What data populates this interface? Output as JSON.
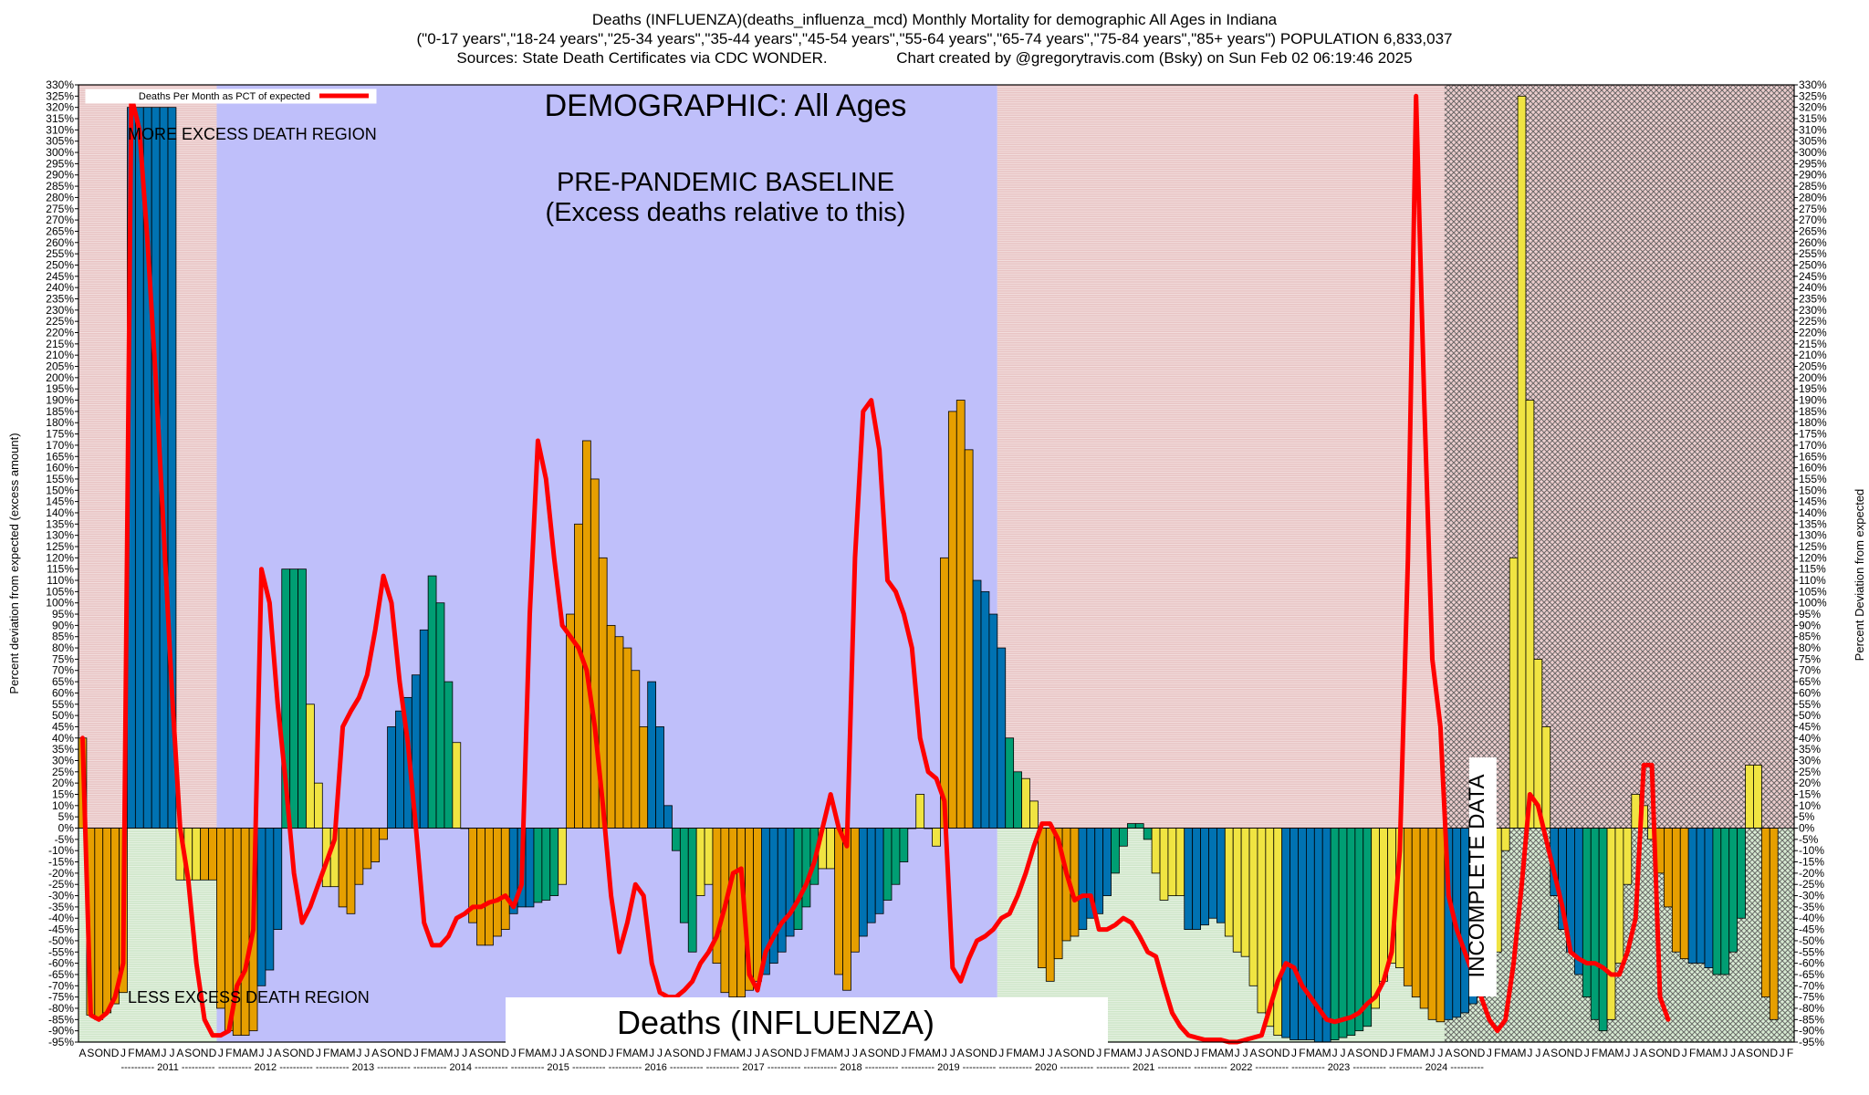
{
  "header": {
    "line1": "Deaths (INFLUENZA)(deaths_influenza_mcd) Monthly Mortality for demographic All Ages in Indiana",
    "line2": "(\"0-17 years\",\"18-24 years\",\"25-34 years\",\"35-44 years\",\"45-54 years\",\"55-64 years\",\"65-74 years\",\"75-84 years\",\"85+ years\") POPULATION 6,833,037",
    "line3": "Sources: State Death Certificates via CDC WONDER.                Chart created by @gregorytravis.com (Bsky) on Sun Feb 02 06:19:46 2025"
  },
  "labels": {
    "demographic": "DEMOGRAPHIC: All Ages",
    "baseline_line1": "PRE-PANDEMIC BASELINE",
    "baseline_line2": "(Excess deaths relative to this)",
    "more_region": "MORE EXCESS DEATH REGION",
    "less_region": "LESS EXCESS DEATH REGION",
    "metric": "Deaths (INFLUENZA)",
    "incomplete": "INCOMPLETE DATA",
    "legend": "Deaths Per Month as PCT of expected",
    "ylabel_left": "Percent deviation from expected (excess amount)",
    "ylabel_right": "Percent Deviation from expected"
  },
  "colors": {
    "excess_region": "#e8c4c4",
    "deficit_region": "#cfe6c9",
    "baseline_region": "#bfbffa",
    "bar_orange": "#e69f00",
    "bar_yellow": "#f0e442",
    "bar_blue": "#0072b2",
    "bar_green": "#009e73",
    "line": "#ff0000"
  },
  "chart_data": {
    "type": "bar",
    "ylim": [
      -95,
      330
    ],
    "ytick_step": 5,
    "x_start": "2010-08",
    "years": [
      "2011",
      "2012",
      "2013",
      "2014",
      "2015",
      "2016",
      "2017",
      "2018",
      "2019",
      "2020",
      "2021",
      "2022",
      "2023",
      "2024"
    ],
    "month_initials": [
      "J",
      "F",
      "M",
      "A",
      "M",
      "J",
      "J",
      "A",
      "S",
      "O",
      "N",
      "D"
    ],
    "baseline_period": [
      "2012-01",
      "2019-12"
    ],
    "incomplete_period": [
      "2024-08",
      "2024-12"
    ],
    "bars": [
      {
        "values": [
          40,
          -83,
          -85,
          -82,
          -78,
          -73
        ],
        "color": "orange"
      },
      {
        "values": [
          320,
          320,
          320,
          320,
          320,
          320
        ],
        "color": "blue"
      },
      {
        "values": [
          -23,
          -23,
          -23
        ],
        "color": "yellow"
      },
      {
        "values": [
          -23,
          -23,
          -80,
          -90,
          -92,
          -92,
          -90
        ],
        "color": "orange"
      },
      {
        "values": [
          -70,
          -63,
          -45
        ],
        "color": "blue"
      },
      {
        "values": [
          115,
          115,
          115
        ],
        "color": "green"
      },
      {
        "values": [
          55,
          20,
          -26,
          -26
        ],
        "color": "yellow"
      },
      {
        "values": [
          -35,
          -38,
          -25,
          -18
        ],
        "color": "orange"
      },
      {
        "values": [
          -15,
          -5
        ],
        "color": "orange"
      },
      {
        "values": [
          45,
          52,
          58,
          68,
          88
        ],
        "color": "blue"
      },
      {
        "values": [
          112,
          100,
          65
        ],
        "color": "green"
      },
      {
        "values": [
          38,
          0
        ],
        "color": "yellow"
      },
      {
        "values": [
          -42,
          -52,
          -52,
          -48,
          -45
        ],
        "color": "orange"
      },
      {
        "values": [
          -38,
          -35,
          -35
        ],
        "color": "blue"
      },
      {
        "values": [
          -33,
          -32,
          -30
        ],
        "color": "green"
      },
      {
        "values": [
          -25
        ],
        "color": "yellow"
      },
      {
        "values": [
          95,
          135,
          172,
          155,
          120,
          90,
          85,
          80,
          70,
          45
        ],
        "color": "orange"
      },
      {
        "values": [
          65,
          45,
          10
        ],
        "color": "blue"
      },
      {
        "values": [
          -10,
          -42,
          -55
        ],
        "color": "green"
      },
      {
        "values": [
          -30,
          -25
        ],
        "color": "yellow"
      },
      {
        "values": [
          -60,
          -73,
          -75,
          -75,
          -72,
          -68
        ],
        "color": "orange"
      },
      {
        "values": [
          -65,
          -60,
          -55,
          -48
        ],
        "color": "blue"
      },
      {
        "values": [
          -45,
          -35,
          -25
        ],
        "color": "green"
      },
      {
        "values": [
          -18,
          -18
        ],
        "color": "yellow"
      },
      {
        "values": [
          -65,
          -72,
          -55
        ],
        "color": "orange"
      },
      {
        "values": [
          -48,
          -42,
          -38
        ],
        "color": "blue"
      },
      {
        "values": [
          -32,
          -25,
          -15
        ],
        "color": "green"
      },
      {
        "values": [
          0,
          15,
          0,
          -8
        ],
        "color": "yellow"
      },
      {
        "values": [
          120,
          185,
          190,
          168
        ],
        "color": "orange"
      },
      {
        "values": [
          110,
          105,
          95,
          80
        ],
        "color": "blue"
      },
      {
        "values": [
          40,
          25
        ],
        "color": "green"
      },
      {
        "values": [
          22,
          12
        ],
        "color": "yellow"
      },
      {
        "values": [
          -62,
          -68,
          -58,
          -50,
          -48
        ],
        "color": "orange"
      },
      {
        "values": [
          -45,
          -40,
          -38,
          -30
        ],
        "color": "blue"
      },
      {
        "values": [
          -20,
          -8,
          2,
          2,
          -5
        ],
        "color": "green"
      },
      {
        "values": [
          -20,
          -32,
          -30,
          -30
        ],
        "color": "yellow"
      },
      {
        "values": [
          -45,
          -45,
          -43,
          -40,
          -42
        ],
        "color": "blue"
      },
      {
        "values": [
          -48,
          -55,
          -57,
          -70,
          -82,
          -88,
          -92
        ],
        "color": "yellow"
      },
      {
        "values": [
          -93,
          -94,
          -94,
          -94,
          -95,
          -95
        ],
        "color": "blue"
      },
      {
        "values": [
          -94,
          -93,
          -92,
          -90,
          -88
        ],
        "color": "green"
      },
      {
        "values": [
          -80,
          -68,
          -60,
          -62
        ],
        "color": "yellow"
      },
      {
        "values": [
          -70,
          -75,
          -80,
          -85,
          -86
        ],
        "color": "orange"
      },
      {
        "values": [
          -85,
          -84,
          -82,
          -78,
          -75,
          -68
        ],
        "color": "blue"
      },
      {
        "values": [
          -55,
          -10
        ],
        "color": "yellow"
      },
      {
        "values": [
          120,
          325,
          190,
          75,
          45
        ],
        "color": "yellow"
      },
      {
        "values": [
          -30,
          -45,
          -55,
          -65
        ],
        "color": "blue"
      },
      {
        "values": [
          -75,
          -85,
          -90
        ],
        "color": "green"
      },
      {
        "values": [
          -85,
          -60,
          -25
        ],
        "color": "yellow"
      },
      {
        "values": [
          15,
          10,
          -5
        ],
        "color": "yellow"
      },
      {
        "values": [
          -20,
          -35,
          -55,
          -58
        ],
        "color": "orange"
      },
      {
        "values": [
          -60,
          -60,
          -62
        ],
        "color": "blue"
      },
      {
        "values": [
          -65,
          -65,
          -55,
          -40
        ],
        "color": "green"
      },
      {
        "values": [
          28,
          28
        ],
        "color": "yellow"
      },
      {
        "values": [
          -75,
          -85
        ],
        "color": "orange"
      }
    ],
    "line": [
      40,
      -83,
      -85,
      -82,
      -75,
      -60,
      325,
      310,
      260,
      200,
      130,
      60,
      0,
      -23,
      -60,
      -85,
      -92,
      -92,
      -90,
      -70,
      -63,
      -45,
      115,
      100,
      55,
      20,
      -20,
      -42,
      -35,
      -25,
      -15,
      -5,
      45,
      52,
      58,
      68,
      88,
      112,
      100,
      65,
      38,
      0,
      -42,
      -52,
      -52,
      -48,
      -40,
      -38,
      -35,
      -35,
      -33,
      -32,
      -30,
      -35,
      -25,
      95,
      172,
      155,
      120,
      90,
      85,
      80,
      70,
      45,
      10,
      -30,
      -55,
      -42,
      -25,
      -30,
      -60,
      -73,
      -75,
      -75,
      -72,
      -68,
      -60,
      -55,
      -48,
      -35,
      -20,
      -18,
      -65,
      -72,
      -55,
      -48,
      -42,
      -38,
      -32,
      -25,
      -15,
      0,
      15,
      0,
      -8,
      120,
      185,
      190,
      168,
      110,
      105,
      95,
      80,
      40,
      25,
      22,
      12,
      -62,
      -68,
      -58,
      -50,
      -48,
      -45,
      -40,
      -38,
      -30,
      -20,
      -8,
      2,
      2,
      -5,
      -20,
      -32,
      -30,
      -30,
      -45,
      -45,
      -43,
      -40,
      -42,
      -48,
      -55,
      -57,
      -70,
      -82,
      -88,
      -92,
      -93,
      -94,
      -94,
      -94,
      -95,
      -95,
      -94,
      -93,
      -92,
      -80,
      -68,
      -60,
      -62,
      -70,
      -75,
      -80,
      -85,
      -86,
      -85,
      -84,
      -82,
      -78,
      -75,
      -68,
      -55,
      -10,
      120,
      325,
      190,
      75,
      45,
      -30,
      -45,
      -55,
      -65,
      -75,
      -85,
      -90,
      -85,
      -60,
      -25,
      15,
      10,
      -5,
      -20,
      -35,
      -55,
      -58,
      -60,
      -60,
      -62,
      -65,
      -65,
      -55,
      -40,
      28,
      28,
      -75,
      -85
    ]
  }
}
